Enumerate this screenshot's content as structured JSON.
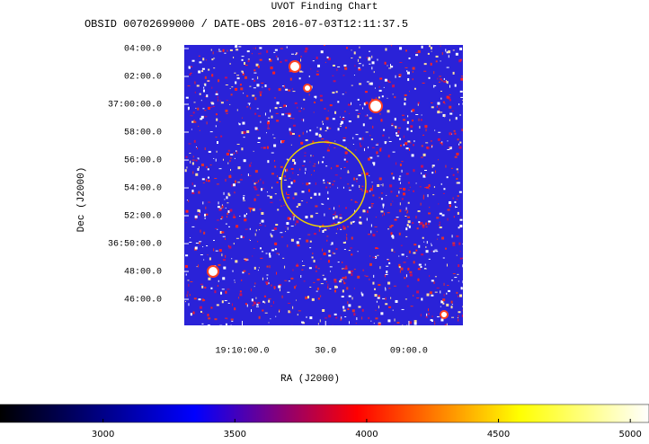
{
  "chart_data": {
    "type": "image",
    "title": "UVOT Finding Chart",
    "subtitle": "OBSID 00702699000 / DATE-OBS 2016-07-03T12:11:37.5",
    "xlabel": "RA (J2000)",
    "ylabel": "Dec (J2000)",
    "xlim": [
      287.587,
      287.169
    ],
    "xticks": [
      {
        "value": 287.5,
        "label": "19:10:00.0"
      },
      {
        "value": 287.375,
        "label": "30.0"
      },
      {
        "value": 287.25,
        "label": "09:00.0"
      }
    ],
    "ylim": [
      36.7355,
      37.071
    ],
    "yticks": [
      {
        "value": 37.0667,
        "label": "04:00.0"
      },
      {
        "value": 37.0333,
        "label": "02:00.0"
      },
      {
        "value": 37.0,
        "label": "37:00:00.0"
      },
      {
        "value": 36.9667,
        "label": "58:00.0"
      },
      {
        "value": 36.9333,
        "label": "56:00.0"
      },
      {
        "value": 36.9,
        "label": "54:00.0"
      },
      {
        "value": 36.8667,
        "label": "52:00.0"
      },
      {
        "value": 36.8333,
        "label": "36:50:00.0"
      },
      {
        "value": 36.8,
        "label": "48:00.0"
      },
      {
        "value": 36.7667,
        "label": "46:00.0"
      }
    ],
    "colorbar": {
      "lim": [
        2609,
        5071
      ],
      "ticks": [
        3000,
        3500,
        4000,
        4500,
        5000
      ]
    }
  }
}
